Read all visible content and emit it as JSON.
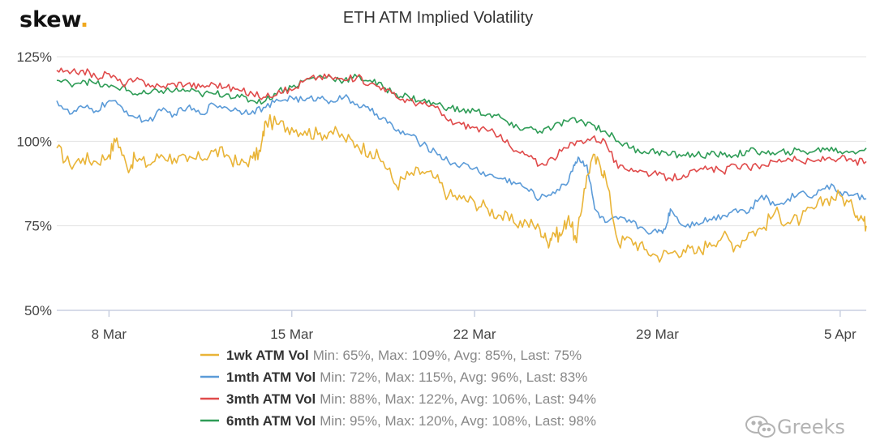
{
  "brand": {
    "name": "skew",
    "dot": "."
  },
  "watermark": {
    "text": "Greeks"
  },
  "chart_data": {
    "type": "line",
    "title": "ETH ATM Implied Volatility",
    "xlabel": "",
    "ylabel": "",
    "ylim": [
      50,
      125
    ],
    "y_ticks": [
      {
        "value": 50,
        "label": "50%"
      },
      {
        "value": 75,
        "label": "75%"
      },
      {
        "value": 100,
        "label": "100%"
      },
      {
        "value": 125,
        "label": "125%"
      }
    ],
    "x_range": [
      0,
      31
    ],
    "x_ticks": [
      {
        "x": 2,
        "label": "8 Mar"
      },
      {
        "x": 9,
        "label": "15 Mar"
      },
      {
        "x": 16,
        "label": "22 Mar"
      },
      {
        "x": 23,
        "label": "29 Mar"
      },
      {
        "x": 30,
        "label": "5 Apr"
      }
    ],
    "grid": {
      "horizontal": true,
      "vertical": false
    },
    "legend_position": "bottom",
    "series": [
      {
        "name": "1wk ATM Vol",
        "stats": "Min: 65%, Max: 109%, Avg: 85%, Last: 75%",
        "color": "#e9b437",
        "x": [
          0,
          0.5,
          1,
          1.5,
          2,
          2.3,
          2.7,
          3,
          3.5,
          4,
          4.5,
          5,
          5.5,
          6,
          6.5,
          7,
          7.5,
          7.8,
          8,
          8.5,
          9,
          9.5,
          10,
          10.5,
          11,
          11.5,
          12,
          12.5,
          13,
          13.5,
          14,
          14.5,
          15,
          15.5,
          16,
          16.5,
          17,
          17.5,
          18,
          18.5,
          18.8,
          19,
          19.3,
          19.6,
          19.9,
          20.2,
          20.5,
          20.8,
          21,
          21.5,
          22,
          22.5,
          23,
          23.5,
          24,
          24.5,
          25,
          25.5,
          26,
          26.5,
          27,
          27.5,
          28,
          28.5,
          29,
          29.5,
          30,
          30.5,
          30.8,
          31
        ],
        "y": [
          98,
          93,
          95,
          94,
          96,
          101,
          92,
          95,
          93,
          96,
          95,
          94,
          95,
          97,
          96,
          93,
          95,
          97,
          106,
          105,
          104,
          103,
          102,
          103,
          101,
          99,
          97,
          94,
          87,
          90,
          91,
          89,
          84,
          83,
          82,
          80,
          78,
          76,
          76,
          74,
          70,
          73,
          72,
          78,
          70,
          86,
          95,
          93,
          90,
          70,
          71,
          68,
          66,
          67,
          68,
          67,
          70,
          72,
          69,
          73,
          74,
          79,
          76,
          77,
          80,
          83,
          84,
          80,
          78,
          75
        ]
      },
      {
        "name": "1mth ATM Vol",
        "stats": "Min: 72%, Max: 115%, Avg: 96%, Last: 83%",
        "color": "#5b9bd8",
        "x": [
          0,
          0.5,
          1,
          1.5,
          2,
          2.5,
          3,
          3.5,
          4,
          4.5,
          5,
          5.5,
          6,
          6.5,
          7,
          7.5,
          8,
          8.5,
          9,
          9.5,
          10,
          10.5,
          11,
          11.5,
          12,
          12.5,
          13,
          13.5,
          14,
          14.5,
          15,
          15.5,
          16,
          16.5,
          17,
          17.5,
          18,
          18.5,
          19,
          19.5,
          19.8,
          20,
          20.3,
          20.6,
          21,
          21.5,
          22,
          22.5,
          23,
          23.3,
          23.5,
          24,
          24.5,
          25,
          25.5,
          26,
          26.5,
          27,
          27.5,
          28,
          28.5,
          29,
          29.5,
          30,
          30.5,
          31
        ],
        "y": [
          112,
          108,
          110,
          109,
          112,
          110,
          107,
          106,
          109,
          108,
          110,
          108,
          111,
          110,
          109,
          109,
          110,
          112,
          113,
          112,
          113,
          112,
          113,
          111,
          109,
          107,
          103,
          102,
          99,
          97,
          94,
          93,
          92,
          90,
          89,
          88,
          86,
          83,
          85,
          87,
          93,
          95,
          93,
          80,
          76,
          77,
          76,
          74,
          73,
          74,
          80,
          75,
          76,
          77,
          78,
          80,
          79,
          84,
          81,
          83,
          85,
          84,
          87,
          85,
          84,
          83
        ]
      },
      {
        "name": "3mth ATM Vol",
        "stats": "Min: 88%, Max: 122%, Avg: 106%, Last: 94%",
        "color": "#e04b4b",
        "x": [
          0,
          0.5,
          1,
          1.5,
          2,
          2.5,
          3,
          3.5,
          4,
          4.5,
          5,
          5.5,
          6,
          6.5,
          7,
          7.5,
          8,
          8.5,
          9,
          9.5,
          10,
          10.5,
          11,
          11.5,
          12,
          12.5,
          13,
          13.5,
          14,
          14.5,
          15,
          15.5,
          16,
          16.5,
          17,
          17.5,
          18,
          18.5,
          19,
          19.5,
          20,
          20.5,
          21,
          21.5,
          22,
          22.5,
          23,
          23.5,
          24,
          24.5,
          25,
          25.5,
          26,
          26.5,
          27,
          27.5,
          28,
          28.5,
          29,
          29.5,
          30,
          30.5,
          31
        ],
        "y": [
          121,
          120,
          121,
          119,
          120,
          117,
          118,
          117,
          116,
          117,
          117,
          116,
          117,
          116,
          115,
          114,
          113,
          115,
          115,
          118,
          119,
          119,
          118,
          119,
          117,
          116,
          113,
          112,
          111,
          110,
          106,
          105,
          104,
          103,
          102,
          97,
          96,
          93,
          95,
          98,
          100,
          101,
          100,
          92,
          92,
          91,
          90,
          89,
          90,
          91,
          92,
          91,
          93,
          92,
          93,
          94,
          95,
          94,
          94,
          95,
          95,
          94,
          94
        ]
      },
      {
        "name": "6mth ATM Vol",
        "stats": "Min: 95%, Max: 120%, Avg: 108%, Last: 98%",
        "color": "#2e9c56",
        "x": [
          0,
          0.5,
          1,
          1.5,
          2,
          2.5,
          3,
          3.5,
          4,
          4.5,
          5,
          5.5,
          6,
          6.5,
          7,
          7.5,
          8,
          8.5,
          9,
          9.5,
          10,
          10.5,
          11,
          11.5,
          12,
          12.5,
          13,
          13.5,
          14,
          14.5,
          15,
          15.5,
          16,
          16.5,
          17,
          17.5,
          18,
          18.5,
          19,
          19.5,
          20,
          20.5,
          21,
          21.5,
          22,
          22.5,
          23,
          23.5,
          24,
          24.5,
          25,
          25.5,
          26,
          26.5,
          27,
          27.5,
          28,
          28.5,
          29,
          29.5,
          30,
          30.5,
          31
        ],
        "y": [
          118,
          117,
          118,
          117,
          116,
          116,
          114,
          114,
          115,
          115,
          115,
          114,
          114,
          114,
          113,
          112,
          112,
          115,
          116,
          118,
          119,
          119,
          118,
          119,
          118,
          116,
          114,
          113,
          112,
          111,
          110,
          109,
          109,
          108,
          107,
          104,
          104,
          103,
          104,
          106,
          106,
          105,
          103,
          100,
          98,
          97,
          97,
          96,
          96,
          96,
          96,
          96,
          96,
          97,
          97,
          96,
          97,
          97,
          97,
          98,
          97,
          97,
          98
        ]
      }
    ]
  }
}
